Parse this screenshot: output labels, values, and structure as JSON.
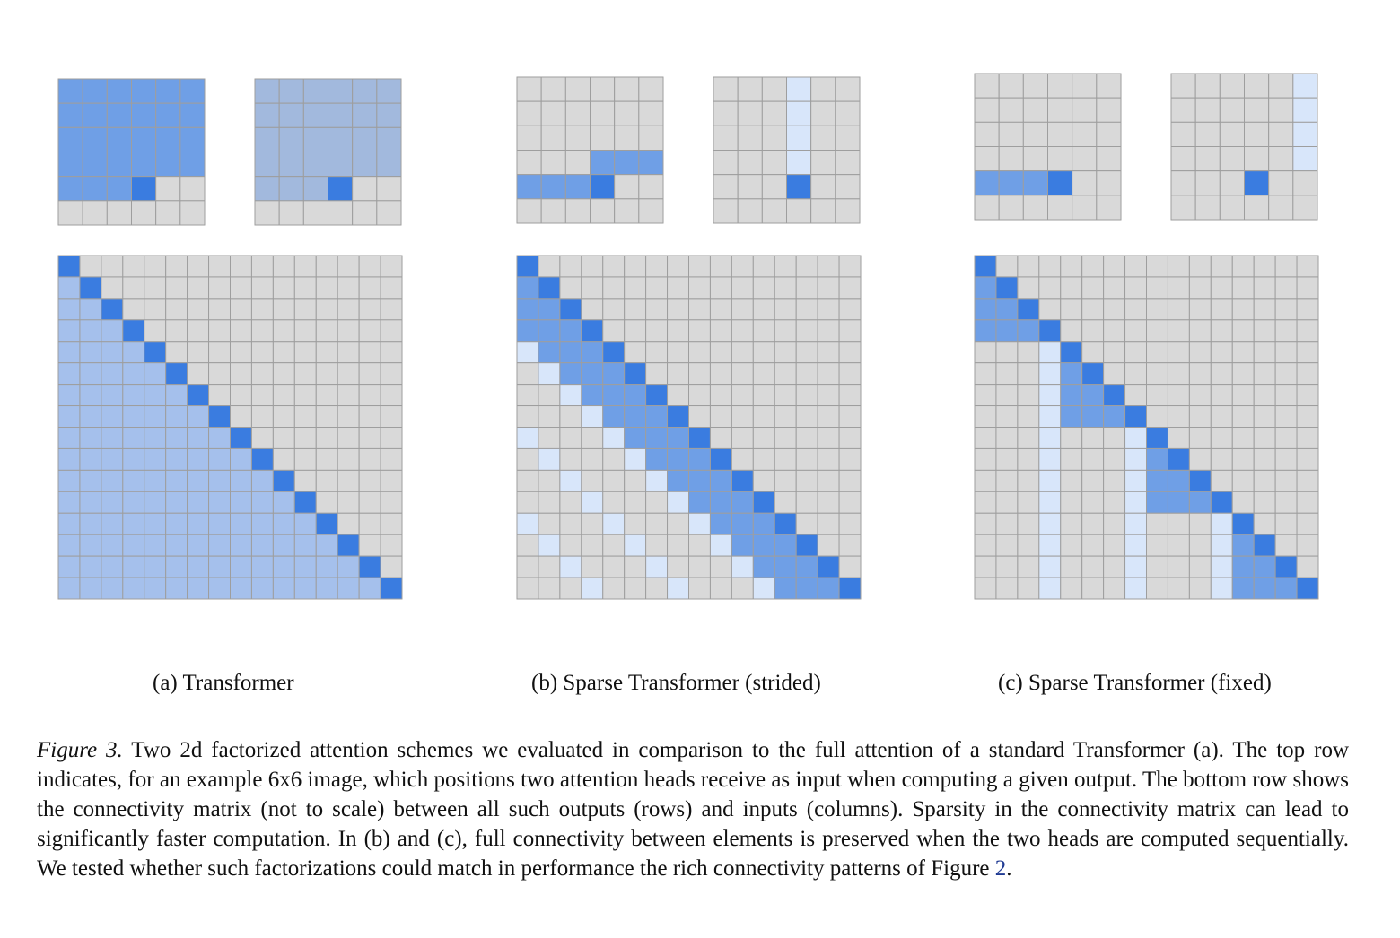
{
  "figure": {
    "colors": {
      "gray": "#d9d9d9",
      "grid": "#9e9e9e",
      "strong": "#3a7ce0",
      "medium": "#6f9fe6",
      "light": "#a5c0ec",
      "pale": "#d8e6fa",
      "full_top_a": "#6f9fe6",
      "full_top_b": "#a2b9dd"
    },
    "image_size": 6,
    "matrix_size": 16,
    "panels": [
      {
        "id": "a",
        "label": "(a)  Transformer",
        "top_heads": [
          {
            "pattern": "full-causal",
            "color_key": "full_top_a"
          },
          {
            "pattern": "full-causal",
            "color_key": "full_top_b"
          }
        ],
        "matrix_pattern": "full-causal"
      },
      {
        "id": "b",
        "label": "(b)  Sparse Transformer (strided)",
        "top_heads": [
          {
            "pattern": "strided-local"
          },
          {
            "pattern": "strided-column"
          }
        ],
        "matrix_pattern": "strided"
      },
      {
        "id": "c",
        "label": "(c)  Sparse Transformer (fixed)",
        "top_heads": [
          {
            "pattern": "fixed-local"
          },
          {
            "pattern": "fixed-summary"
          }
        ],
        "matrix_pattern": "fixed"
      }
    ]
  },
  "caption": {
    "label": "Figure 3.",
    "text": " Two 2d factorized attention schemes we evaluated in comparison to the full attention of a standard Transformer (a). The top row indicates, for an example 6x6 image, which positions two attention heads receive as input when computing a given output. The bottom row shows the connectivity matrix (not to scale) between all such outputs (rows) and inputs (columns). Sparsity in the connectivity matrix can lead to significantly faster computation. In (b) and (c), full connectivity between elements is preserved when the two heads are computed sequentially. We tested whether such factorizations could match in performance the rich connectivity patterns of Figure ",
    "ref": "2",
    "end": "."
  }
}
